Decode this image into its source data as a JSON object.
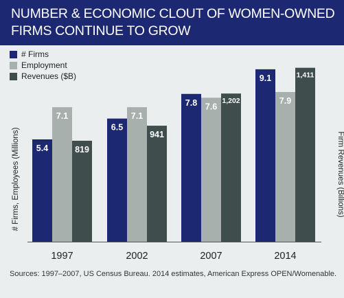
{
  "title": "NUMBER & ECONOMIC CLOUT OF WOMEN-OWNED FIRMS CONTINUE TO GROW",
  "legend": [
    {
      "label": "# Firms",
      "color": "#1d2873"
    },
    {
      "label": "Employment",
      "color": "#a7b0ad"
    },
    {
      "label": "Revenues ($B)",
      "color": "#3f4d4d"
    }
  ],
  "ylabel_left": "# Firms, Employees (Millions)",
  "ylabel_right": "Firm Revenues (Billions)",
  "source": "Sources: 1997–2007, US Census Bureau. 2014 estimates, American Express OPEN/Womenable.",
  "chart_data": {
    "type": "bar",
    "categories": [
      "1997",
      "2002",
      "2007",
      "2014"
    ],
    "series": [
      {
        "name": "# Firms",
        "axis": "left",
        "values": [
          5.4,
          6.5,
          7.8,
          9.1
        ],
        "labels": [
          "5.4",
          "6.5",
          "7.8",
          "9.1"
        ]
      },
      {
        "name": "Employment",
        "axis": "left",
        "values": [
          7.1,
          7.1,
          7.6,
          7.9
        ],
        "labels": [
          "7.1",
          "7.1",
          "7.6",
          "7.9"
        ]
      },
      {
        "name": "Revenues ($B)",
        "axis": "right",
        "values": [
          819,
          941,
          1202,
          1411
        ],
        "labels": [
          "819",
          "941",
          "1,202",
          "1,411"
        ]
      }
    ],
    "ylim_left": [
      0,
      10.8
    ],
    "ylim_right": [
      0,
      1660
    ],
    "grid": false,
    "legend_position": "top-left"
  }
}
